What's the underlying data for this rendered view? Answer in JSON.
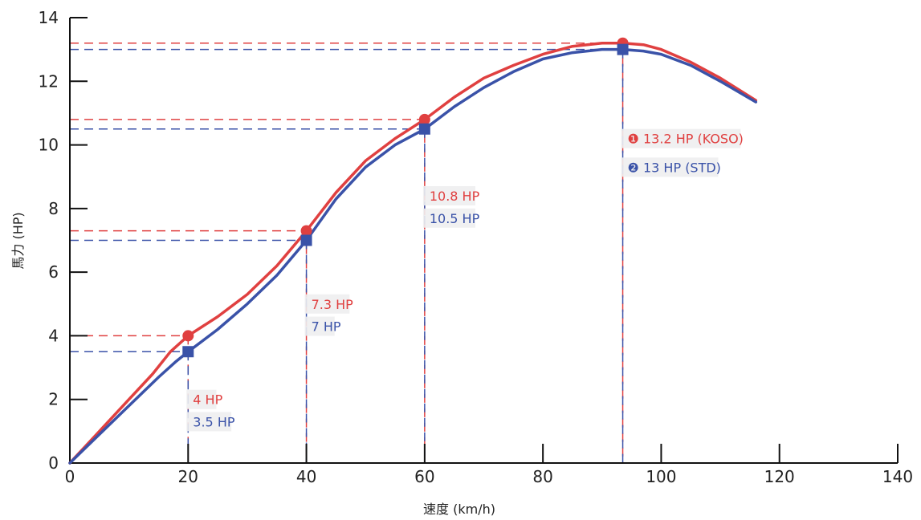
{
  "chart_data": {
    "type": "line",
    "title": "",
    "xlabel": "速度 (km/h)",
    "ylabel": "馬力 (HP)",
    "xlim": [
      0,
      140
    ],
    "ylim": [
      0,
      14
    ],
    "xticks": [
      0,
      20,
      40,
      60,
      80,
      100,
      120,
      140
    ],
    "yticks": [
      0,
      2,
      4,
      6,
      8,
      10,
      12,
      14
    ],
    "grid": false,
    "legend": "none",
    "series": [
      {
        "name": "KOSO",
        "color": "#e04040",
        "marker": "circle",
        "x": [
          0,
          5,
          10,
          14,
          17,
          20,
          25,
          30,
          35,
          40,
          45,
          50,
          55,
          60,
          65,
          70,
          75,
          80,
          85,
          90,
          93.5,
          97,
          100,
          105,
          110,
          116
        ],
        "y": [
          0,
          1.0,
          2.0,
          2.8,
          3.5,
          4.0,
          4.6,
          5.3,
          6.2,
          7.3,
          8.5,
          9.5,
          10.2,
          10.8,
          11.5,
          12.1,
          12.5,
          12.85,
          13.1,
          13.2,
          13.2,
          13.15,
          13.0,
          12.6,
          12.1,
          11.4
        ],
        "highlight_x": [
          20,
          40,
          60,
          93.5
        ],
        "highlight_y": [
          4.0,
          7.3,
          10.8,
          13.2
        ]
      },
      {
        "name": "STD",
        "color": "#3a52a8",
        "marker": "square",
        "x": [
          0,
          5,
          10,
          15,
          18,
          20,
          25,
          30,
          35,
          40,
          45,
          50,
          55,
          60,
          65,
          70,
          75,
          80,
          85,
          90,
          93.5,
          97,
          100,
          105,
          110,
          116
        ],
        "y": [
          0,
          0.9,
          1.8,
          2.7,
          3.2,
          3.5,
          4.2,
          5.0,
          5.9,
          7.0,
          8.3,
          9.3,
          10.0,
          10.5,
          11.2,
          11.8,
          12.3,
          12.7,
          12.9,
          13.0,
          13.0,
          12.95,
          12.85,
          12.5,
          12.0,
          11.35
        ],
        "highlight_x": [
          20,
          40,
          60,
          93.5
        ],
        "highlight_y": [
          3.5,
          7.0,
          10.5,
          13.0
        ]
      }
    ],
    "annotations": [
      {
        "text": "4 HP",
        "color": "#e04040",
        "x": 20,
        "y": 2.0
      },
      {
        "text": "3.5 HP",
        "color": "#3a52a8",
        "x": 20,
        "y": 1.3
      },
      {
        "text": "7.3 HP",
        "color": "#e04040",
        "x": 40,
        "y": 5.0
      },
      {
        "text": "7 HP",
        "color": "#3a52a8",
        "x": 40,
        "y": 4.3
      },
      {
        "text": "10.8 HP",
        "color": "#e04040",
        "x": 60,
        "y": 8.4
      },
      {
        "text": "10.5 HP",
        "color": "#3a52a8",
        "x": 60,
        "y": 7.7
      },
      {
        "text": "❶ 13.2 HP (KOSO)",
        "color": "#e04040",
        "x": 93.5,
        "y": 10.2
      },
      {
        "text": "❷ 13 HP (STD)",
        "color": "#3a52a8",
        "x": 93.5,
        "y": 9.3
      }
    ]
  }
}
